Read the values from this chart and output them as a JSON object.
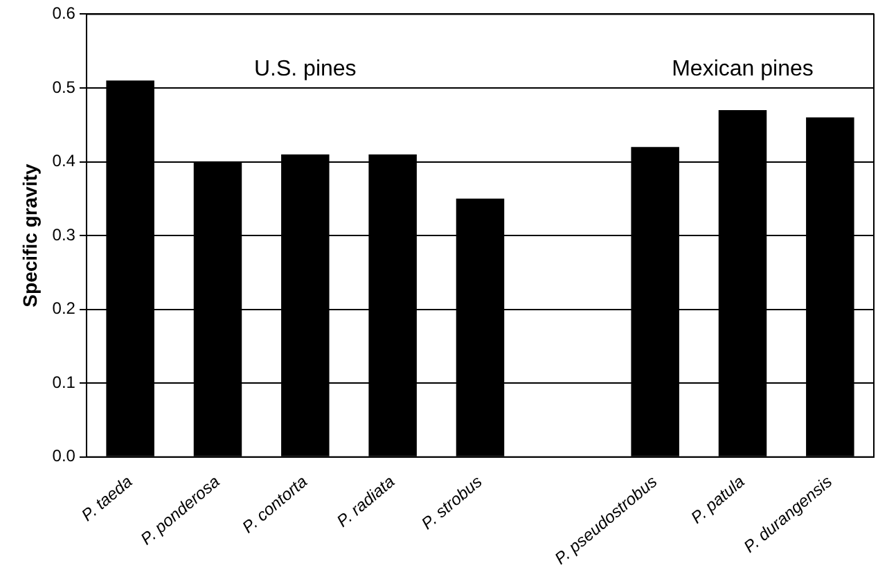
{
  "chart_data": {
    "type": "bar",
    "ylabel": "Specific gravity",
    "categories": [
      "P. taeda",
      "P. ponderosa",
      "P. contorta",
      "P. radiata",
      "P. strobus",
      null,
      "P. pseudostrobus",
      "P. patula",
      "P. durangensis"
    ],
    "values": [
      0.51,
      0.4,
      0.41,
      0.41,
      0.35,
      null,
      0.42,
      0.47,
      0.46
    ],
    "color": "#000000",
    "ylim": [
      0,
      0.6
    ],
    "yticks": [
      {
        "value": 0,
        "label": "0.0"
      },
      0.1,
      0.2,
      0.3,
      0.4,
      0.5,
      0.6
    ],
    "grid": "y",
    "legend": false,
    "annotations": [
      "U.S. pines",
      "Mexican pines"
    ]
  }
}
